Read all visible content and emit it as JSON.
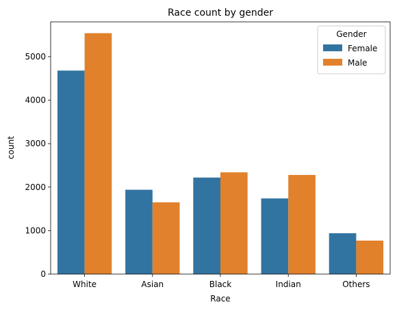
{
  "chart_data": {
    "type": "bar",
    "title": "Race count by gender",
    "xlabel": "Race",
    "ylabel": "count",
    "categories": [
      "White",
      "Asian",
      "Black",
      "Indian",
      "Others"
    ],
    "series": [
      {
        "name": "Female",
        "color": "#3274a1",
        "values": [
          4680,
          1940,
          2220,
          1740,
          940
        ]
      },
      {
        "name": "Male",
        "color": "#e1812c",
        "values": [
          5540,
          1650,
          2340,
          2280,
          770
        ]
      }
    ],
    "ylim": [
      0,
      5800
    ],
    "yticks": [
      0,
      1000,
      2000,
      3000,
      4000,
      5000
    ],
    "legend": {
      "title": "Gender",
      "placement": "top-right"
    },
    "grid": false
  }
}
